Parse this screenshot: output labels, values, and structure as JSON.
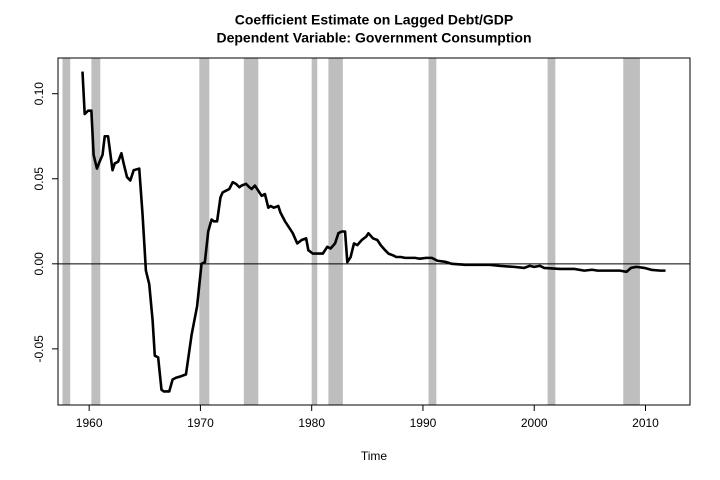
{
  "chart_data": {
    "type": "line",
    "title": "Coefficient Estimate on Lagged Debt/GDP",
    "subtitle": "Dependent Variable: Government Consumption",
    "x_label": "Time",
    "x": [
      1959.4,
      1959.6,
      1959.9,
      1960.2,
      1960.4,
      1960.7,
      1961.0,
      1961.2,
      1961.4,
      1961.7,
      1962.1,
      1962.3,
      1962.6,
      1962.9,
      1963.1,
      1963.4,
      1963.7,
      1964.0,
      1964.5,
      1964.8,
      1965.1,
      1965.4,
      1965.7,
      1965.9,
      1966.2,
      1966.5,
      1966.7,
      1967.2,
      1967.5,
      1967.8,
      1968.3,
      1968.7,
      1969.2,
      1969.7,
      1970.1,
      1970.4,
      1970.7,
      1971.0,
      1971.2,
      1971.5,
      1971.8,
      1972.0,
      1972.3,
      1972.6,
      1972.9,
      1973.2,
      1973.5,
      1973.7,
      1974.1,
      1974.4,
      1974.6,
      1974.9,
      1975.2,
      1975.5,
      1975.8,
      1976.1,
      1976.3,
      1976.6,
      1977.0,
      1977.2,
      1977.6,
      1978.0,
      1978.3,
      1978.7,
      1979.1,
      1979.5,
      1979.7,
      1980.1,
      1980.6,
      1981.0,
      1981.4,
      1981.7,
      1982.1,
      1982.4,
      1982.7,
      1983.0,
      1983.2,
      1983.5,
      1983.8,
      1984.1,
      1984.5,
      1984.9,
      1985.1,
      1985.5,
      1985.9,
      1986.2,
      1986.6,
      1986.9,
      1987.3,
      1987.6,
      1988.0,
      1988.4,
      1989.3,
      1989.7,
      1990.3,
      1990.8,
      1991.3,
      1992.0,
      1992.6,
      1993.8,
      1995.1,
      1996.0,
      1996.9,
      1998.2,
      1999.1,
      1999.6,
      2000.0,
      2000.5,
      2000.9,
      2002.3,
      2003.6,
      2004.5,
      2005.2,
      2005.7,
      2006.8,
      2007.7,
      2008.3,
      2008.7,
      2009.2,
      2009.9,
      2010.5,
      2011.3,
      2011.8
    ],
    "series": [
      {
        "name": "coefficient",
        "color": "#000000",
        "values": [
          0.113,
          0.088,
          0.09,
          0.09,
          0.064,
          0.056,
          0.061,
          0.064,
          0.075,
          0.075,
          0.055,
          0.059,
          0.06,
          0.065,
          0.059,
          0.051,
          0.049,
          0.055,
          0.056,
          0.029,
          -0.004,
          -0.012,
          -0.033,
          -0.054,
          -0.055,
          -0.074,
          -0.075,
          -0.075,
          -0.068,
          -0.067,
          -0.066,
          -0.065,
          -0.042,
          -0.025,
          0.0,
          0.001,
          0.019,
          0.026,
          0.025,
          0.025,
          0.039,
          0.042,
          0.043,
          0.044,
          0.048,
          0.047,
          0.045,
          0.046,
          0.047,
          0.045,
          0.044,
          0.046,
          0.043,
          0.04,
          0.041,
          0.033,
          0.034,
          0.033,
          0.034,
          0.03,
          0.025,
          0.021,
          0.018,
          0.012,
          0.014,
          0.015,
          0.008,
          0.006,
          0.006,
          0.006,
          0.01,
          0.009,
          0.012,
          0.018,
          0.019,
          0.019,
          0.001,
          0.004,
          0.012,
          0.011,
          0.014,
          0.016,
          0.018,
          0.015,
          0.014,
          0.011,
          0.008,
          0.006,
          0.005,
          0.004,
          0.004,
          0.0035,
          0.0035,
          0.003,
          0.0035,
          0.0035,
          0.0018,
          0.0012,
          0.0,
          -0.0006,
          -0.0006,
          -0.0006,
          -0.0012,
          -0.0018,
          -0.0024,
          -0.0012,
          -0.0018,
          -0.0012,
          -0.0024,
          -0.003,
          -0.003,
          -0.004,
          -0.0035,
          -0.004,
          -0.004,
          -0.004,
          -0.0047,
          -0.0024,
          -0.0018,
          -0.0024,
          -0.0035,
          -0.004,
          -0.004
        ]
      }
    ],
    "shaded_periods": [
      [
        1957.6,
        1958.3
      ],
      [
        1960.2,
        1961.0
      ],
      [
        1969.9,
        1970.8
      ],
      [
        1973.9,
        1975.2
      ],
      [
        1980.0,
        1980.5
      ],
      [
        1981.5,
        1982.8
      ],
      [
        1990.5,
        1991.2
      ],
      [
        2001.2,
        2001.9
      ],
      [
        2008.0,
        2009.5
      ]
    ],
    "shade_color": "#bebebe",
    "hline": 0,
    "xlim": [
      1957.2,
      2014.0
    ],
    "ylim": [
      -0.083,
      0.121
    ],
    "xticks": [
      1960,
      1970,
      1980,
      1990,
      2000,
      2010
    ],
    "yticks": [
      {
        "value": -0.05,
        "label": "-0.05"
      },
      {
        "value": 0,
        "label": "0.00"
      },
      {
        "value": 0.05,
        "label": "0.05"
      },
      {
        "value": 0.1,
        "label": "0.10"
      }
    ]
  }
}
